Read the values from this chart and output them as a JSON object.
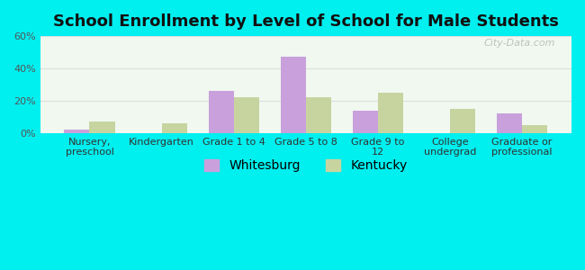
{
  "title": "School Enrollment by Level of School for Male Students",
  "categories": [
    "Nursery,\npreschool",
    "Kindergarten",
    "Grade 1 to 4",
    "Grade 5 to 8",
    "Grade 9 to\n12",
    "College\nundergrad",
    "Graduate or\nprofessional"
  ],
  "whitesburg": [
    2,
    0,
    26,
    47,
    14,
    0,
    12
  ],
  "kentucky": [
    7,
    6,
    22,
    22,
    25,
    15,
    5
  ],
  "whitesburg_color": "#c9a0dc",
  "kentucky_color": "#c8d4a0",
  "background_outer": "#00efef",
  "background_inner": "#f0f8f0",
  "ylim": [
    0,
    60
  ],
  "yticks": [
    0,
    20,
    40,
    60
  ],
  "ytick_labels": [
    "0%",
    "20%",
    "40%",
    "60%"
  ],
  "bar_width": 0.35,
  "title_fontsize": 13,
  "legend_fontsize": 10,
  "tick_fontsize": 8,
  "watermark": "City-Data.com"
}
